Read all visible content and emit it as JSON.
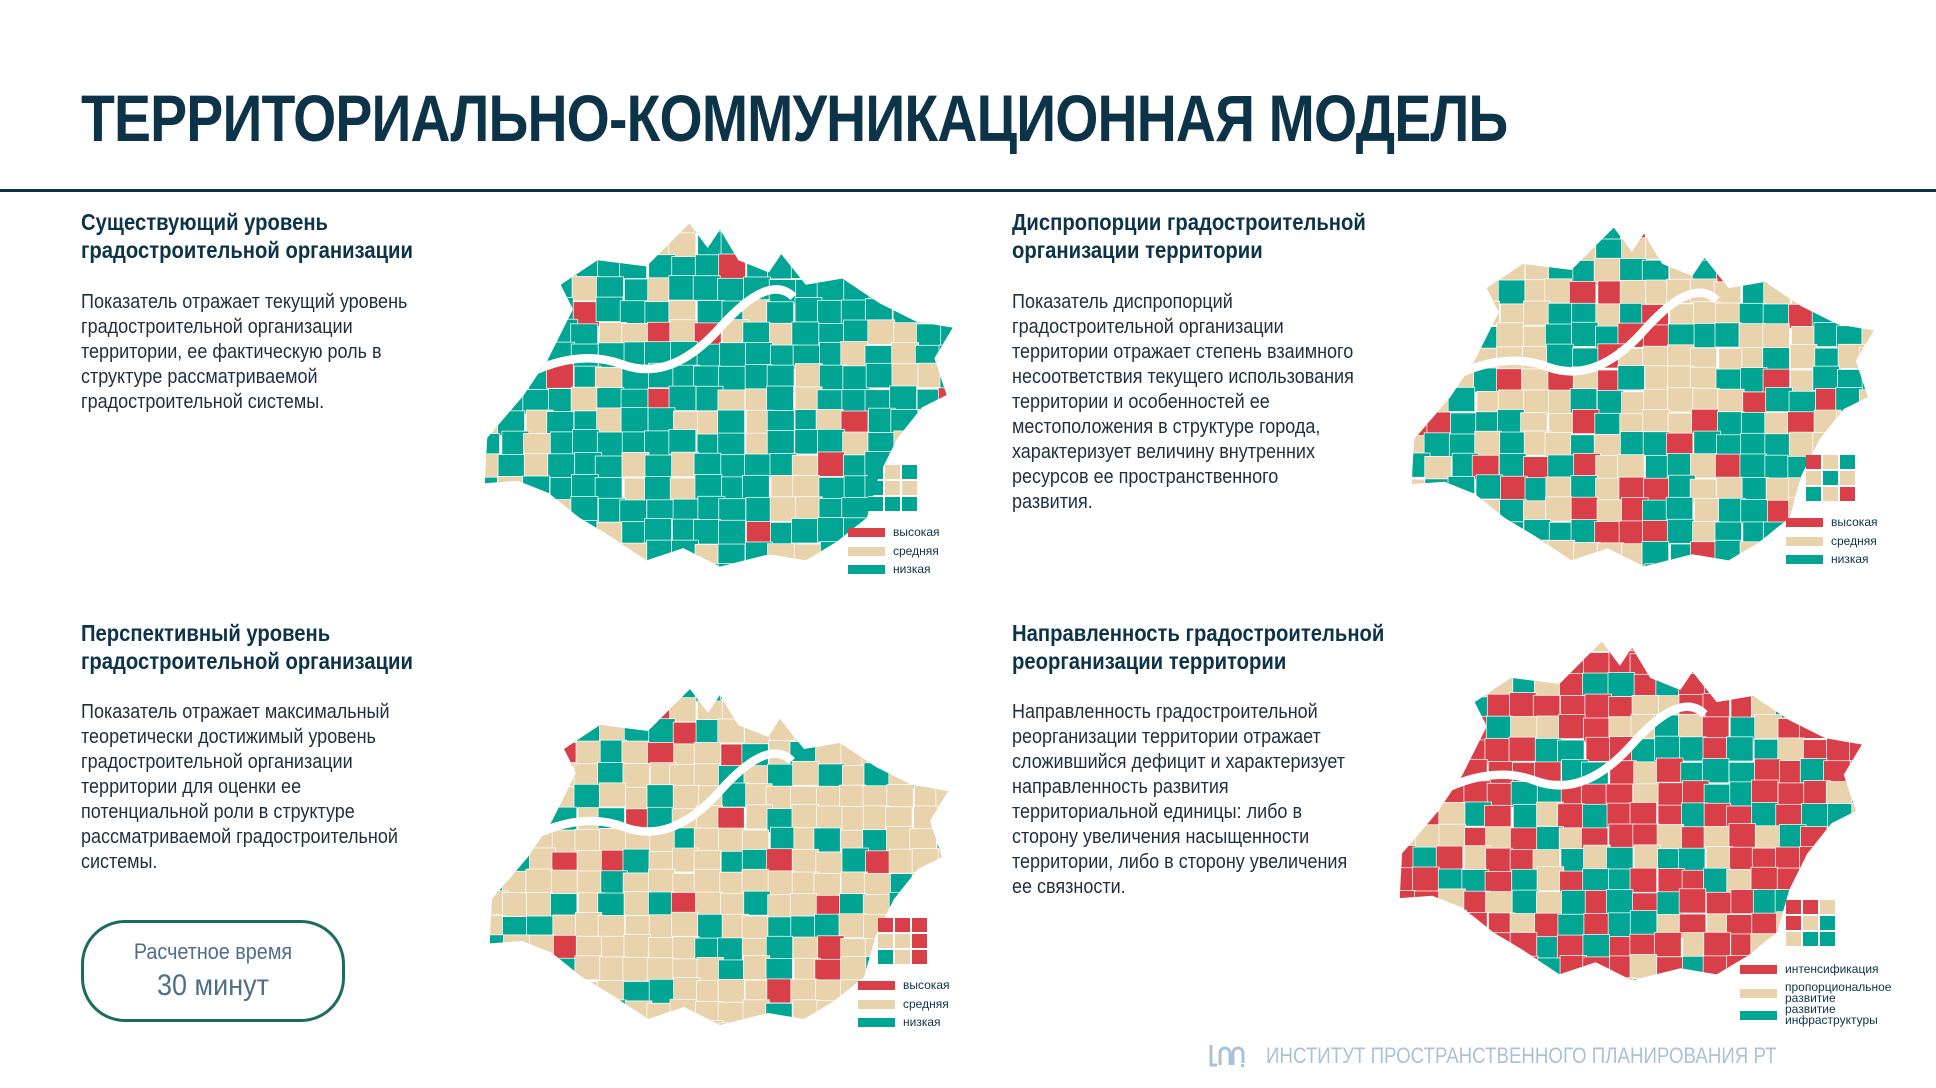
{
  "title": "ТЕРРИТОРИАЛЬНО-КОММУНИКАЦИОННАЯ МОДЕЛЬ",
  "colors": {
    "high": "#d93f48",
    "mid": "#e8d3ad",
    "low": "#00a693",
    "navy": "#0d3349"
  },
  "sections": [
    {
      "heading": "Существующий уровень\nградостроительной организации",
      "text": "Показатель отражает текущий уровень градостроительной организации территории, ее фактическую роль в структуре рассматриваемой градостроительной системы.",
      "legend": [
        "высокая",
        "средняя",
        "низкая"
      ]
    },
    {
      "heading": "Диспропорции градостроительной\nорганизации территории",
      "text": "Показатель диспропорций градостроительной организации территории отражает степень взаимного несоответствия текущего использования территории и особенностей ее местоположения в структуре города, характеризует величину внутренних ресурсов ее пространственного развития.",
      "legend": [
        "высокая",
        "средняя",
        "низкая"
      ]
    },
    {
      "heading": "Перспективный уровень\nградостроительной организации",
      "text": "Показатель отражает максимальный теоретически достижимый уровень градостроительной организации территории для оценки ее потенциальной роли в структуре рассматриваемой градостроительной системы.",
      "legend": [
        "высокая",
        "средняя",
        "низкая"
      ]
    },
    {
      "heading": "Направленность градостроительной\nреорганизации территории",
      "text": "Направленность градостроительной реорганизации территории отражает сложившийся дефицит и характеризует направленность развития территориальной единицы: либо в сторону увеличения насыщенности территории, либо в сторону увеличения ее связности.",
      "legend": [
        "интенсификация",
        "пропорциональное развитие",
        "развитие инфраструктуры"
      ]
    }
  ],
  "badge": {
    "line1": "Расчетное время",
    "line2": "30 минут"
  },
  "footer": {
    "org": "ИНСТИТУТ ПРОСТРАНСТВЕННОГО ПЛАНИРОВАНИЯ РТ",
    "logo_icon": "ipp-logo-icon"
  }
}
